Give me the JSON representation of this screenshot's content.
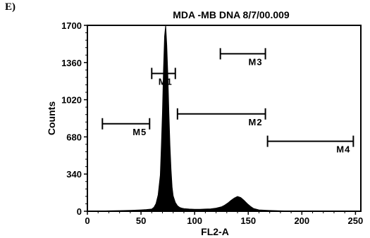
{
  "panel_label": "E)",
  "chart_data": {
    "type": "histogram",
    "title": "MDA -MB DNA 8/7/00.009",
    "xlabel": "FL2-A",
    "ylabel": "Counts",
    "xlim": [
      0,
      255
    ],
    "ylim": [
      0,
      1700
    ],
    "x_ticks": [
      0,
      50,
      100,
      150,
      200,
      250
    ],
    "y_ticks": [
      0,
      340,
      680,
      1020,
      1360,
      1700
    ],
    "x_tick_labels": [
      "0",
      "50",
      "100",
      "150",
      "200",
      "250"
    ],
    "y_tick_labels": [
      "0",
      "340",
      "680",
      "1020",
      "1360",
      "1700"
    ],
    "bins": {
      "x": [
        2,
        10,
        20,
        30,
        40,
        50,
        55,
        60,
        62,
        64,
        66,
        68,
        69,
        70,
        71,
        72,
        73,
        74,
        75,
        76,
        77,
        78,
        79,
        80,
        82,
        84,
        86,
        88,
        90,
        95,
        100,
        105,
        110,
        115,
        120,
        125,
        128,
        131,
        134,
        137,
        140,
        143,
        146,
        149,
        152,
        155,
        160,
        170,
        180,
        190,
        200,
        210,
        220,
        230,
        240,
        250
      ],
      "y": [
        0,
        2,
        4,
        6,
        8,
        12,
        15,
        20,
        35,
        70,
        150,
        330,
        600,
        900,
        1300,
        1600,
        1700,
        1520,
        1250,
        900,
        600,
        380,
        220,
        140,
        80,
        50,
        35,
        28,
        24,
        20,
        18,
        18,
        20,
        22,
        28,
        40,
        55,
        75,
        100,
        120,
        135,
        125,
        100,
        70,
        45,
        25,
        12,
        7,
        4,
        2,
        1,
        1,
        0,
        0,
        0,
        0
      ]
    },
    "markers": [
      {
        "label": "M1",
        "start": 60,
        "end": 82,
        "y": 1260
      },
      {
        "label": "M2",
        "start": 84,
        "end": 166,
        "y": 890
      },
      {
        "label": "M3",
        "start": 124,
        "end": 166,
        "y": 1440
      },
      {
        "label": "M4",
        "start": 168,
        "end": 248,
        "y": 640
      },
      {
        "label": "M5",
        "start": 14,
        "end": 58,
        "y": 800
      }
    ]
  }
}
